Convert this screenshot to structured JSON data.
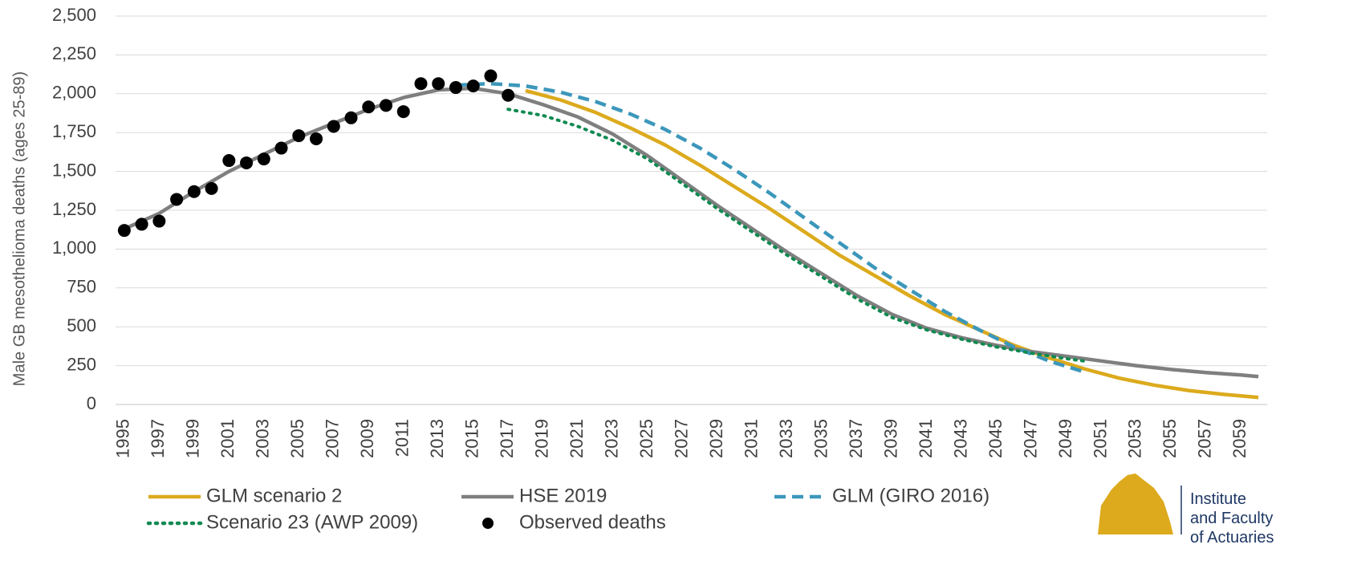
{
  "chart_data": {
    "type": "line",
    "y_label": "Male GB mesothelioma deaths (ages 25-89)",
    "xlim": [
      1994.5,
      2060.5
    ],
    "xticks": [
      1995,
      1997,
      1999,
      2001,
      2003,
      2005,
      2007,
      2009,
      2011,
      2013,
      2015,
      2017,
      2019,
      2021,
      2023,
      2025,
      2027,
      2029,
      2031,
      2033,
      2035,
      2037,
      2039,
      2041,
      2043,
      2045,
      2047,
      2049,
      2051,
      2053,
      2055,
      2057,
      2059
    ],
    "ylim": [
      0,
      2500
    ],
    "yticks": [
      0,
      250,
      500,
      750,
      {
        "value": 1000,
        "label": "1,000"
      },
      {
        "value": 1250,
        "label": "1,250"
      },
      {
        "value": 1500,
        "label": "1,500"
      },
      {
        "value": 1750,
        "label": "1,750"
      },
      {
        "value": 2000,
        "label": "2,000"
      },
      {
        "value": 2250,
        "label": "2,250"
      },
      {
        "value": 2500,
        "label": "2,500"
      }
    ],
    "grid": true,
    "legend": "bottom",
    "series": [
      {
        "name": "GLM scenario 2",
        "color": "#dcaa1c",
        "style": "solid",
        "x": [
          2018,
          2020,
          2022,
          2024,
          2026,
          2028,
          2030,
          2032,
          2034,
          2036,
          2038,
          2040,
          2042,
          2044,
          2046,
          2048,
          2050,
          2052,
          2054,
          2056,
          2058,
          2060
        ],
        "values": [
          2020,
          1960,
          1880,
          1780,
          1670,
          1540,
          1400,
          1260,
          1110,
          960,
          830,
          700,
          580,
          480,
          380,
          300,
          230,
          170,
          125,
          90,
          65,
          45
        ]
      },
      {
        "name": "HSE 2019",
        "color": "#7f7f7f",
        "style": "solid",
        "x": [
          1995,
          1997,
          1999,
          2001,
          2003,
          2005,
          2007,
          2009,
          2011,
          2013,
          2015,
          2017,
          2019,
          2021,
          2023,
          2025,
          2027,
          2029,
          2031,
          2033,
          2035,
          2037,
          2039,
          2041,
          2043,
          2045,
          2047,
          2049,
          2051,
          2053,
          2055,
          2057,
          2059,
          2060
        ],
        "values": [
          1130,
          1230,
          1370,
          1500,
          1610,
          1720,
          1810,
          1900,
          1975,
          2025,
          2035,
          2000,
          1930,
          1850,
          1740,
          1600,
          1440,
          1280,
          1130,
          980,
          840,
          700,
          580,
          490,
          430,
          380,
          340,
          310,
          280,
          250,
          225,
          205,
          190,
          180
        ]
      },
      {
        "name": "GLM (GIRO 2016)",
        "color": "#3c97bb",
        "style": "dashed",
        "x": [
          2014,
          2016,
          2018,
          2020,
          2022,
          2024,
          2026,
          2028,
          2030,
          2032,
          2034,
          2036,
          2038,
          2040,
          2042,
          2044,
          2046,
          2048,
          2050
        ],
        "values": [
          2055,
          2065,
          2050,
          2010,
          1950,
          1870,
          1770,
          1650,
          1510,
          1360,
          1200,
          1040,
          880,
          740,
          600,
          480,
          370,
          280,
          210
        ]
      },
      {
        "name": "Scenario 23 (AWP 2009)",
        "color": "#0f8a50",
        "style": "dotted",
        "x": [
          2017,
          2019,
          2021,
          2023,
          2025,
          2027,
          2029,
          2031,
          2033,
          2035,
          2037,
          2039,
          2041,
          2043,
          2045,
          2047,
          2049,
          2050
        ],
        "values": [
          1900,
          1860,
          1790,
          1700,
          1580,
          1420,
          1260,
          1110,
          960,
          820,
          680,
          560,
          480,
          420,
          370,
          330,
          295,
          280
        ]
      },
      {
        "name": "Observed deaths",
        "color": "#000000",
        "style": "markers",
        "x": [
          1995,
          1996,
          1997,
          1998,
          1999,
          2000,
          2001,
          2002,
          2003,
          2004,
          2005,
          2006,
          2007,
          2008,
          2009,
          2010,
          2011,
          2012,
          2013,
          2014,
          2015,
          2016,
          2017
        ],
        "values": [
          1120,
          1160,
          1180,
          1320,
          1370,
          1390,
          1570,
          1555,
          1580,
          1650,
          1730,
          1710,
          1790,
          1845,
          1915,
          1925,
          1885,
          2065,
          2065,
          2040,
          2050,
          2115,
          1990
        ]
      }
    ]
  },
  "logo": {
    "lines": [
      "Institute",
      "and Faculty",
      "of Actuaries"
    ]
  }
}
